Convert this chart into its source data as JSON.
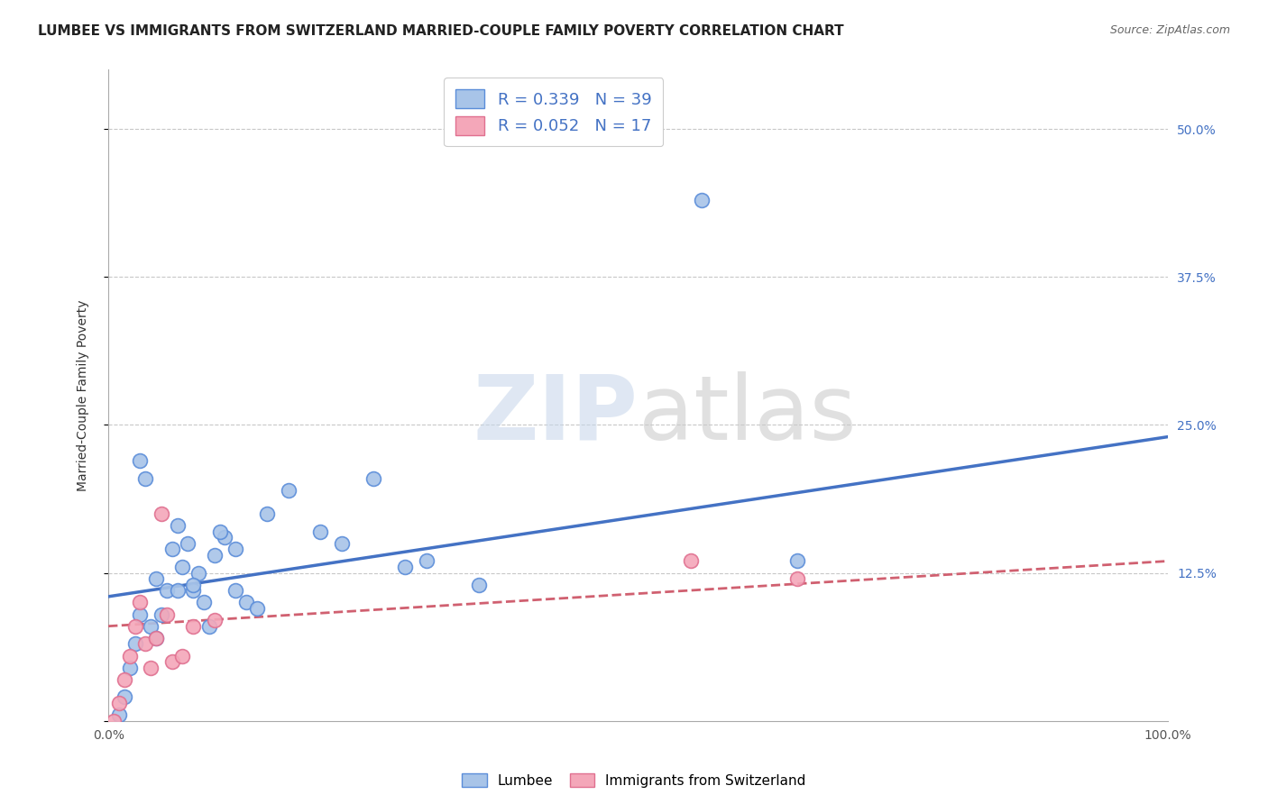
{
  "title": "LUMBEE VS IMMIGRANTS FROM SWITZERLAND MARRIED-COUPLE FAMILY POVERTY CORRELATION CHART",
  "source": "Source: ZipAtlas.com",
  "ylabel": "Married-Couple Family Poverty",
  "xlim": [
    0,
    100
  ],
  "ylim": [
    0,
    55
  ],
  "watermark_part1": "ZIP",
  "watermark_part2": "atlas",
  "legend_r1": "R = 0.339",
  "legend_n1": "N = 39",
  "legend_r2": "R = 0.052",
  "legend_n2": "N = 17",
  "lumbee_color": "#A8C4E8",
  "swiss_color": "#F4A7B9",
  "lumbee_edge_color": "#5B8DD9",
  "swiss_edge_color": "#E07090",
  "lumbee_line_color": "#4472C4",
  "swiss_line_color": "#D06070",
  "background_color": "#ffffff",
  "grid_color": "#C8C8C8",
  "lumbee_x": [
    1.0,
    1.5,
    2.0,
    2.5,
    3.0,
    3.5,
    4.0,
    4.5,
    5.0,
    5.5,
    6.0,
    6.5,
    7.0,
    7.5,
    8.0,
    8.5,
    9.0,
    9.5,
    10.0,
    11.0,
    12.0,
    13.0,
    14.0,
    15.0,
    17.0,
    20.0,
    22.0,
    25.0,
    28.0,
    30.0,
    35.0,
    3.0,
    4.5,
    6.5,
    8.0,
    10.5,
    12.0,
    56.0,
    65.0
  ],
  "lumbee_y": [
    0.5,
    2.0,
    4.5,
    6.5,
    22.0,
    20.5,
    8.0,
    7.0,
    9.0,
    11.0,
    14.5,
    16.5,
    13.0,
    15.0,
    11.0,
    12.5,
    10.0,
    8.0,
    14.0,
    15.5,
    11.0,
    10.0,
    9.5,
    17.5,
    19.5,
    16.0,
    15.0,
    20.5,
    13.0,
    13.5,
    11.5,
    9.0,
    12.0,
    11.0,
    11.5,
    16.0,
    14.5,
    44.0,
    13.5
  ],
  "swiss_x": [
    0.5,
    1.0,
    1.5,
    2.0,
    2.5,
    3.0,
    3.5,
    4.0,
    4.5,
    5.0,
    5.5,
    6.0,
    7.0,
    8.0,
    10.0,
    55.0,
    65.0
  ],
  "swiss_y": [
    0.0,
    1.5,
    3.5,
    5.5,
    8.0,
    10.0,
    6.5,
    4.5,
    7.0,
    17.5,
    9.0,
    5.0,
    5.5,
    8.0,
    8.5,
    13.5,
    12.0
  ],
  "lumbee_line_x0": 0,
  "lumbee_line_x1": 100,
  "lumbee_line_y0": 10.5,
  "lumbee_line_y1": 24.0,
  "swiss_line_x0": 0,
  "swiss_line_x1": 100,
  "swiss_line_y0": 8.0,
  "swiss_line_y1": 13.5
}
